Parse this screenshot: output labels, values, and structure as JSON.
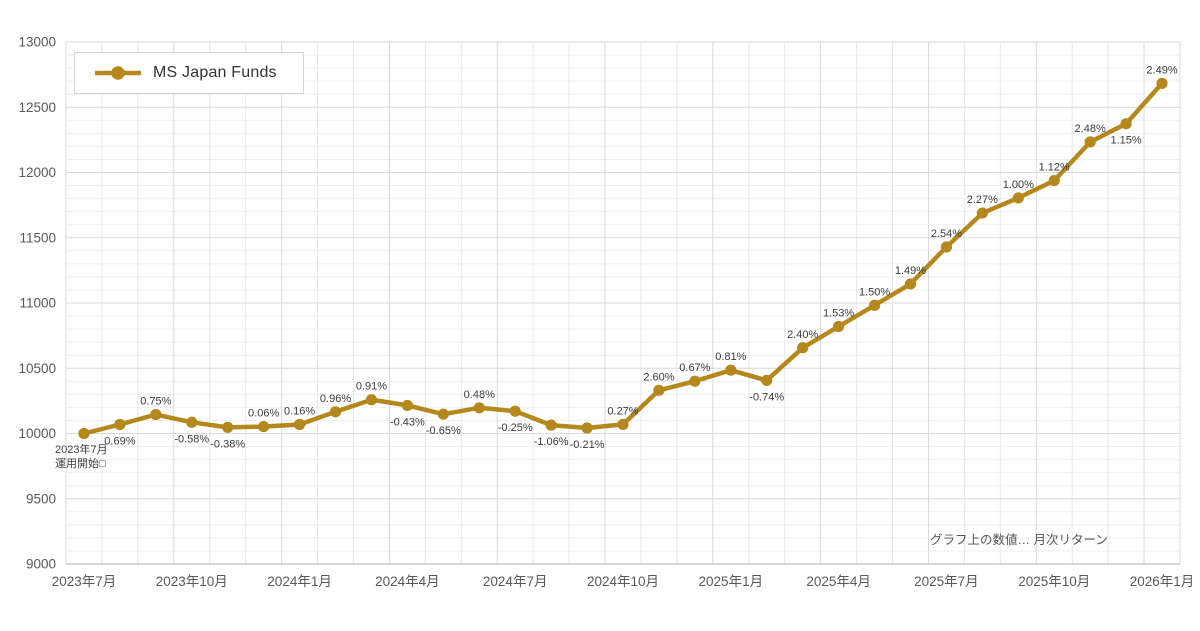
{
  "chart_data": {
    "type": "line",
    "series_name": "MS Japan Funds",
    "months": 31,
    "base_value": 10000,
    "values": [
      10000,
      10069,
      10145,
      10086,
      10047,
      10053,
      10069,
      10166,
      10259,
      10215,
      10148,
      10197,
      10171,
      10064,
      10042,
      10070,
      10331,
      10401,
      10485,
      10407,
      10657,
      10820,
      10982,
      11146,
      11429,
      11689,
      11805,
      11938,
      12234,
      12374,
      12683
    ],
    "returns_pct": [
      null,
      0.69,
      0.75,
      -0.58,
      -0.38,
      0.06,
      0.16,
      0.96,
      0.91,
      -0.43,
      -0.65,
      0.48,
      -0.25,
      -1.06,
      -0.21,
      0.27,
      2.6,
      0.67,
      0.81,
      -0.74,
      2.4,
      1.53,
      1.5,
      1.49,
      2.54,
      2.27,
      1.0,
      1.12,
      2.48,
      1.15,
      2.49
    ],
    "label_pos": [
      null,
      "below",
      "above",
      "below",
      "below",
      "above",
      "above",
      "above",
      "above",
      "below",
      "below",
      "above",
      "below",
      "below",
      "below",
      "above",
      "above",
      "above",
      "above",
      "below",
      "above",
      "above",
      "above",
      "above",
      "above",
      "above",
      "above",
      "above",
      "above",
      "below",
      "above"
    ],
    "x_tick_labels": [
      "2023年7月",
      "2023年10月",
      "2024年1月",
      "2024年4月",
      "2024年7月",
      "2024年10月",
      "2025年1月",
      "2025年4月",
      "2025年7月",
      "2025年10月",
      "2026年1月"
    ],
    "x_tick_every": 3,
    "ylim": [
      9000,
      13000
    ],
    "y_major": 500,
    "y_minor": 100,
    "grid": true,
    "legend_position": "top-left",
    "annotations": {
      "inception_line1": "2023年7月",
      "inception_line2": "運用開始□",
      "footnote": "グラフ上の数値… 月次リターン"
    },
    "colors": {
      "line": "#B5881D",
      "axis_text": "#595959",
      "data_label_text": "#3b3b3b",
      "grid_major": "#d9d9d9",
      "grid_minor_h": "#efefef",
      "grid_minor_v": "#e7e7e7",
      "axis_line": "#bfbfbf"
    }
  }
}
